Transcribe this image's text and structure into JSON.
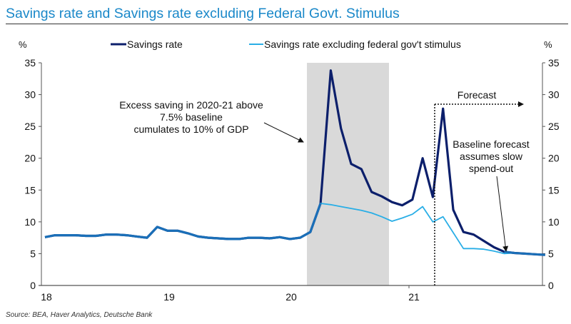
{
  "header": {
    "title": "Savings rate and Savings rate excluding Federal Govt. Stimulus"
  },
  "footer": {
    "source": "Source: BEA, Haver Analytics, Deutsche Bank"
  },
  "colors": {
    "title": "#1a88c9",
    "savings_rate": "#0c1f6b",
    "savings_ex_stimulus": "#29aee6",
    "overlap": "#1a6fb8",
    "shade": "#d9d9d9"
  },
  "chart_data": {
    "type": "line",
    "title": "Savings rate and Savings rate excluding Federal Govt. Stimulus",
    "xlabel": "",
    "ylabel_left": "%",
    "ylabel_right": "%",
    "ylim": [
      0,
      35
    ],
    "yticks": [
      "0",
      "5",
      "10",
      "15",
      "20",
      "25",
      "30",
      "35"
    ],
    "xticks": [
      "18",
      "19",
      "20",
      "21"
    ],
    "x_unit": "month index from Jan 2018",
    "grid": false,
    "legend_position": "top",
    "series": [
      {
        "name": "Savings rate",
        "values": [
          7.6,
          7.9,
          7.9,
          7.9,
          7.8,
          7.8,
          8.0,
          8.0,
          7.9,
          7.7,
          7.5,
          9.2,
          8.6,
          8.6,
          8.2,
          7.7,
          7.5,
          7.4,
          7.3,
          7.3,
          7.5,
          7.5,
          7.4,
          7.6,
          7.3,
          7.5,
          8.4,
          12.9,
          33.8,
          24.7,
          19.1,
          18.3,
          14.7,
          14.0,
          13.1,
          12.6,
          13.5,
          20.0,
          13.9,
          27.8,
          11.9,
          8.4,
          8.0,
          7.0,
          6.0,
          5.3,
          5.1,
          5.0,
          4.9,
          4.8
        ]
      },
      {
        "name": "Savings rate excluding federal gov't stimulus",
        "values": [
          7.6,
          7.9,
          7.9,
          7.9,
          7.8,
          7.8,
          8.0,
          8.0,
          7.9,
          7.7,
          7.5,
          9.2,
          8.6,
          8.6,
          8.2,
          7.7,
          7.5,
          7.4,
          7.3,
          7.3,
          7.5,
          7.5,
          7.4,
          7.6,
          7.3,
          7.5,
          8.4,
          12.9,
          12.7,
          12.4,
          12.1,
          11.8,
          11.4,
          10.8,
          10.1,
          10.6,
          11.2,
          12.4,
          10.0,
          10.8,
          8.3,
          5.8,
          5.8,
          5.7,
          5.4,
          5.0,
          5.1,
          5.0,
          4.9,
          4.8
        ]
      }
    ],
    "x_offset_months": -1,
    "shaded_region": {
      "from_month": 26,
      "to_month": 34
    },
    "forecast_start_month": 38,
    "annotations": [
      {
        "name": "excess-saving",
        "lines": [
          "Excess saving in 2020-21 above",
          "7.5% baseline",
          "cumulates to 10% of GDP"
        ]
      },
      {
        "name": "forecast",
        "lines": [
          "Forecast"
        ]
      },
      {
        "name": "baseline-forecast",
        "lines": [
          "Baseline forecast",
          "assumes slow",
          "spend-out"
        ]
      }
    ]
  }
}
